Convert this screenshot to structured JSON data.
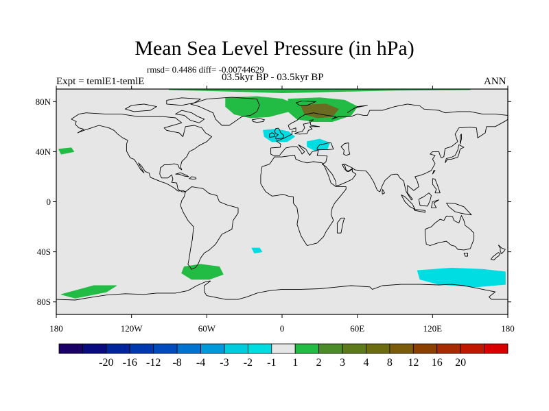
{
  "title": "Mean Sea Level Pressure (in hPa)",
  "stats": "rmsd= 0.4486 diff= -0.00744629",
  "expt": "Expt = temlE1-temlE",
  "period": "03.5kyr BP - 03.5kyr BP",
  "season": "ANN",
  "map": {
    "lon_range": [
      -180,
      180
    ],
    "lat_range": [
      -90,
      90
    ],
    "background_color": "#e6e6e6",
    "y_ticks": [
      {
        "lat": 80,
        "label": "80N"
      },
      {
        "lat": 40,
        "label": "40N"
      },
      {
        "lat": 0,
        "label": "0"
      },
      {
        "lat": -40,
        "label": "40S"
      },
      {
        "lat": -80,
        "label": "80S"
      }
    ],
    "x_ticks": [
      {
        "lon": -180,
        "label": "180"
      },
      {
        "lon": -120,
        "label": "120W"
      },
      {
        "lon": -60,
        "label": "60W"
      },
      {
        "lon": 0,
        "label": "0"
      },
      {
        "lon": 60,
        "label": "60E"
      },
      {
        "lon": 120,
        "label": "120E"
      },
      {
        "lon": 180,
        "label": "180"
      }
    ],
    "anomaly_regions": [
      {
        "name": "arctic-positive",
        "color": "#22bb44",
        "level": "1 to 2"
      },
      {
        "name": "greenland-positive",
        "color": "#22bb44",
        "level": "1 to 2"
      },
      {
        "name": "scandinavia-positive",
        "color": "#22bb44",
        "level": "1 to 2"
      },
      {
        "name": "scandinavia-core",
        "color": "#6b6b22",
        "level": "3 to 4"
      },
      {
        "name": "north-atlantic-negative",
        "color": "#00dde2",
        "level": "-2 to -1"
      },
      {
        "name": "mediterranean-negative",
        "color": "#00dde2",
        "level": "-2 to -1"
      },
      {
        "name": "north-pacific-west-positive",
        "color": "#22bb44",
        "level": "1 to 2"
      },
      {
        "name": "southern-ocean-negative",
        "color": "#00dde2",
        "level": "-2 to -1"
      },
      {
        "name": "drake-passage-positive",
        "color": "#22bb44",
        "level": "1 to 2"
      },
      {
        "name": "ross-sea-positive",
        "color": "#22bb44",
        "level": "1 to 2"
      },
      {
        "name": "south-atlantic-negative",
        "color": "#00dde2",
        "level": "-2 to -1"
      }
    ]
  },
  "colorbar": {
    "colors": [
      "#1a0066",
      "#0a0a80",
      "#00249c",
      "#0038b0",
      "#004bbd",
      "#0073d1",
      "#0099d9",
      "#00ccdd",
      "#00dde2",
      "#e6e6e6",
      "#22bb44",
      "#4c8c28",
      "#5c7a1a",
      "#6b6b10",
      "#7a5c0a",
      "#8b4000",
      "#a82a00",
      "#c01800",
      "#d80000"
    ],
    "labels": [
      "-20",
      "-16",
      "-12",
      "-8",
      "-4",
      "-3",
      "-2",
      "-1",
      "1",
      "2",
      "3",
      "4",
      "8",
      "12",
      "16",
      "20"
    ]
  }
}
